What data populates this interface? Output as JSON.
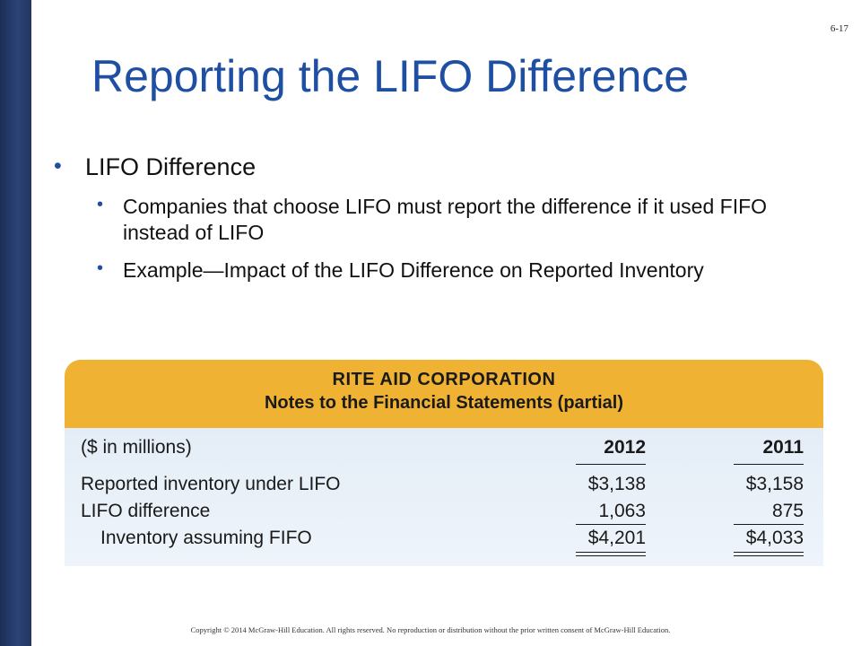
{
  "slide": {
    "number": "6-17",
    "title": "Reporting the LIFO Difference",
    "copyright": "Copyright © 2014 McGraw-Hill Education. All rights reserved. No reproduction or distribution without the prior written consent of McGraw-Hill Education."
  },
  "bullets": {
    "level1": "LIFO Difference",
    "level2": [
      "Companies that choose LIFO must report the difference if it used FIFO instead of LIFO",
      "Example—Impact of the LIFO Difference on Reported Inventory"
    ]
  },
  "statement": {
    "company": "RITE AID CORPORATION",
    "subtitle": "Notes to the Financial Statements (partial)",
    "units_label": "($ in millions)",
    "years": [
      "2012",
      "2011"
    ],
    "rows": [
      {
        "label": "Reported inventory under LIFO",
        "values": [
          "$3,138",
          "$3,158"
        ]
      },
      {
        "label": "LIFO difference",
        "values": [
          "1,063",
          "875"
        ]
      },
      {
        "label": "Inventory assuming FIFO",
        "values": [
          "$4,201",
          "$4,033"
        ]
      }
    ]
  },
  "colors": {
    "title_blue": "#1e4fa3",
    "header_gold": "#f0b233",
    "side_bar_navy": "#22365f"
  }
}
